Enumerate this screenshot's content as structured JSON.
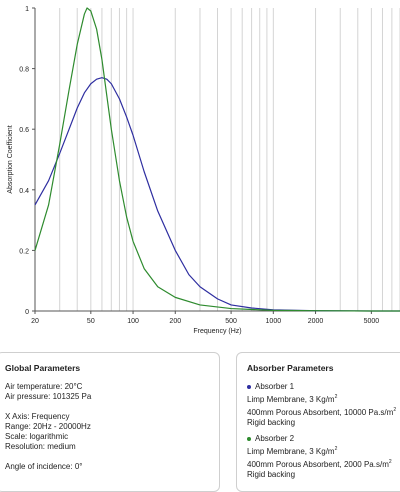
{
  "chart_data": {
    "type": "line",
    "title": "",
    "xlabel": "Frequency (Hz)",
    "ylabel": "Absorption Coefficient",
    "xscale": "log",
    "xlim": [
      20,
      8000
    ],
    "ylim": [
      0,
      1
    ],
    "grid": "vertical",
    "x_ticks": [
      20,
      50,
      100,
      200,
      500,
      1000,
      2000,
      5000
    ],
    "x_tick_labels": [
      "20",
      "50",
      "100",
      "200",
      "500",
      "1000",
      "2000",
      "5000"
    ],
    "y_ticks": [
      0,
      0.2,
      0.4,
      0.6,
      0.8,
      1
    ],
    "y_tick_labels": [
      "0",
      "0.2",
      "0.4",
      "0.6",
      "0.8",
      "1"
    ],
    "series": [
      {
        "color": "#2e2ea0",
        "points": [
          [
            20,
            0.35
          ],
          [
            25,
            0.43
          ],
          [
            30,
            0.52
          ],
          [
            35,
            0.6
          ],
          [
            40,
            0.67
          ],
          [
            45,
            0.72
          ],
          [
            50,
            0.75
          ],
          [
            55,
            0.765
          ],
          [
            60,
            0.77
          ],
          [
            65,
            0.765
          ],
          [
            70,
            0.75
          ],
          [
            80,
            0.7
          ],
          [
            90,
            0.64
          ],
          [
            100,
            0.58
          ],
          [
            120,
            0.46
          ],
          [
            150,
            0.33
          ],
          [
            200,
            0.2
          ],
          [
            250,
            0.12
          ],
          [
            300,
            0.08
          ],
          [
            400,
            0.04
          ],
          [
            500,
            0.02
          ],
          [
            700,
            0.01
          ],
          [
            1000,
            0.004
          ],
          [
            2000,
            0.001
          ],
          [
            5000,
            0
          ],
          [
            8000,
            0
          ]
        ]
      },
      {
        "color": "#2e8b2e",
        "points": [
          [
            20,
            0.2
          ],
          [
            25,
            0.35
          ],
          [
            30,
            0.55
          ],
          [
            35,
            0.73
          ],
          [
            40,
            0.88
          ],
          [
            45,
            0.98
          ],
          [
            47,
            1.0
          ],
          [
            50,
            0.99
          ],
          [
            55,
            0.93
          ],
          [
            60,
            0.83
          ],
          [
            70,
            0.6
          ],
          [
            80,
            0.43
          ],
          [
            90,
            0.31
          ],
          [
            100,
            0.23
          ],
          [
            120,
            0.14
          ],
          [
            150,
            0.08
          ],
          [
            200,
            0.045
          ],
          [
            300,
            0.02
          ],
          [
            500,
            0.008
          ],
          [
            1000,
            0.002
          ],
          [
            2000,
            0.001
          ],
          [
            5000,
            0
          ],
          [
            8000,
            0
          ]
        ]
      }
    ]
  },
  "global_params": {
    "title": "Global Parameters",
    "air_temperature": "Air temperature: 20°C",
    "air_pressure": "Air pressure: 101325 Pa",
    "x_axis": "X Axis: Frequency",
    "range": "Range: 20Hz - 20000Hz",
    "scale": "Scale: logarithmic",
    "resolution": "Resolution: medium",
    "angle": "Angle of incidence: 0°"
  },
  "absorber_params": {
    "title": "Absorber Parameters",
    "absorbers": [
      {
        "name": "Absorber 1",
        "color": "#2e2ea0",
        "membrane": "Limp Membrane, 3 Kg/m",
        "membrane_sup": "2",
        "porous": "400mm Porous Absorbent, 10000 Pa.s/m",
        "porous_sup": "2",
        "backing": "Rigid backing"
      },
      {
        "name": "Absorber 2",
        "color": "#2e8b2e",
        "membrane": "Limp Membrane, 3 Kg/m",
        "membrane_sup": "2",
        "porous": "400mm Porous Absorbent, 2000 Pa.s/m",
        "porous_sup": "2",
        "backing": "Rigid backing"
      }
    ]
  }
}
